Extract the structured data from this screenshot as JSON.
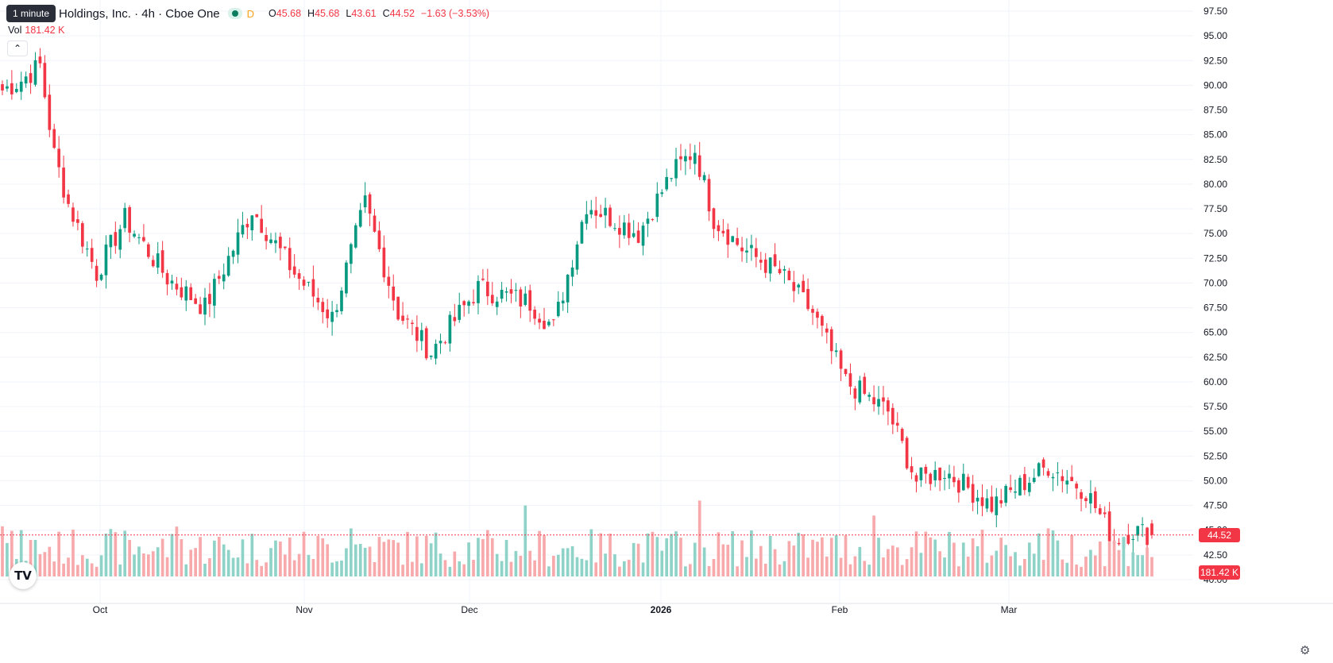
{
  "legend": {
    "tooltip": "1 minute",
    "symbol": "Holdings, Inc. · 4h · Cboe One",
    "interval_badge": "D",
    "open_label": "O",
    "open": "45.68",
    "high_label": "H",
    "high": "45.68",
    "low_label": "L",
    "low": "43.61",
    "close_label": "C",
    "close": "44.52",
    "change": "−1.63 (−3.53%)",
    "volume_label": "Vol",
    "volume": "181.42 K"
  },
  "price_tag": "44.52",
  "volume_tag": "181.42 K",
  "logo_text": "TV",
  "icons": {
    "collapse": "chevron-up-icon",
    "settings": "gear-icon",
    "visibility": "eye-icon"
  },
  "colors": {
    "up": "#089981",
    "down": "#f23645",
    "up_volume": "#8fd3c8",
    "down_volume": "#f7a9ab",
    "grid": "#f0f3fa"
  },
  "chart_data": {
    "type": "candlestick",
    "interval": "4h",
    "y_axis": {
      "min": 40,
      "max": 97.5,
      "step": 2.5,
      "ticks": [
        "97.50",
        "95.00",
        "92.50",
        "90.00",
        "87.50",
        "85.00",
        "82.50",
        "80.00",
        "77.50",
        "75.00",
        "72.50",
        "70.00",
        "67.50",
        "65.00",
        "62.50",
        "60.00",
        "57.50",
        "55.00",
        "52.50",
        "50.00",
        "47.50",
        "45.00",
        "42.50",
        "40.00"
      ]
    },
    "x_axis": {
      "labels": [
        "Oct",
        "Nov",
        "Dec",
        "2026",
        "Feb",
        "Mar"
      ]
    },
    "last_price": 44.52,
    "anchors": [
      {
        "i": 0,
        "price": 89.5
      },
      {
        "i": 4,
        "price": 90.5
      },
      {
        "i": 8,
        "price": 92.0
      },
      {
        "i": 11,
        "price": 83.0
      },
      {
        "i": 14,
        "price": 78.0
      },
      {
        "i": 20,
        "price": 71.0
      },
      {
        "i": 26,
        "price": 76.5
      },
      {
        "i": 35,
        "price": 70.5
      },
      {
        "i": 43,
        "price": 67.5
      },
      {
        "i": 53,
        "price": 77.5
      },
      {
        "i": 62,
        "price": 71.0
      },
      {
        "i": 70,
        "price": 66.5
      },
      {
        "i": 77,
        "price": 78.0
      },
      {
        "i": 84,
        "price": 67.0
      },
      {
        "i": 91,
        "price": 63.0
      },
      {
        "i": 101,
        "price": 69.5
      },
      {
        "i": 112,
        "price": 68.0
      },
      {
        "i": 117,
        "price": 65.5
      },
      {
        "i": 124,
        "price": 78.0
      },
      {
        "i": 135,
        "price": 75.0
      },
      {
        "i": 142,
        "price": 81.0
      },
      {
        "i": 147,
        "price": 83.5
      },
      {
        "i": 151,
        "price": 76.5
      },
      {
        "i": 157,
        "price": 73.5
      },
      {
        "i": 165,
        "price": 71.0
      },
      {
        "i": 172,
        "price": 67.0
      },
      {
        "i": 179,
        "price": 60.0
      },
      {
        "i": 188,
        "price": 57.0
      },
      {
        "i": 194,
        "price": 50.0
      },
      {
        "i": 200,
        "price": 51.0
      },
      {
        "i": 210,
        "price": 47.5
      },
      {
        "i": 222,
        "price": 51.5
      },
      {
        "i": 230,
        "price": 49.0
      },
      {
        "i": 236,
        "price": 44.0
      },
      {
        "i": 240,
        "price": 45.0
      },
      {
        "i": 244,
        "price": 44.52
      }
    ]
  }
}
